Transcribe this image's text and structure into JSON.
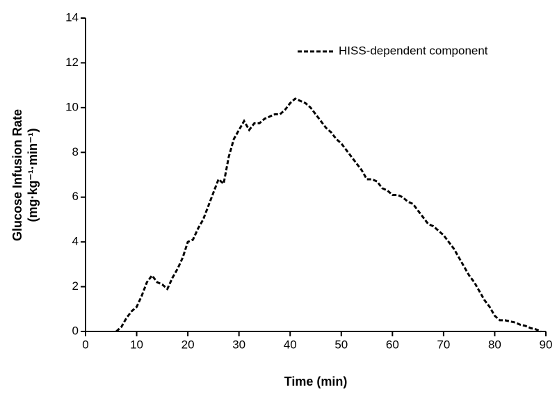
{
  "chart_data": {
    "type": "line",
    "xlabel": "Time (min)",
    "ylabel": [
      "Glucose Infusion Rate",
      "(mg·kg⁻¹·min⁻¹)"
    ],
    "x": [
      6,
      7,
      8,
      9,
      10,
      11,
      12,
      13,
      14,
      15,
      16,
      17,
      18,
      19,
      20,
      21,
      22,
      23,
      24,
      25,
      26,
      27,
      28,
      29,
      30,
      31,
      32,
      33,
      34,
      35,
      36,
      37,
      38,
      39,
      40,
      41,
      42,
      43,
      44,
      45,
      46,
      47,
      48,
      49,
      50,
      51,
      52,
      53,
      54,
      55,
      56,
      57,
      58,
      59,
      60,
      61,
      62,
      63,
      64,
      65,
      66,
      67,
      68,
      69,
      70,
      71,
      72,
      73,
      74,
      75,
      76,
      77,
      78,
      79,
      80,
      81,
      82,
      83,
      84,
      85,
      86,
      87,
      88,
      89
    ],
    "series": [
      {
        "name": "HISS-dependent component",
        "color": "#000000",
        "dashed": true,
        "values": [
          0,
          0.2,
          0.6,
          0.9,
          1.1,
          1.6,
          2.2,
          2.5,
          2.2,
          2.1,
          1.9,
          2.4,
          2.8,
          3.3,
          4.0,
          4.1,
          4.6,
          5.0,
          5.6,
          6.2,
          6.8,
          6.6,
          7.8,
          8.6,
          9.0,
          9.4,
          9.0,
          9.3,
          9.3,
          9.5,
          9.6,
          9.7,
          9.7,
          9.9,
          10.2,
          10.4,
          10.3,
          10.2,
          10.0,
          9.7,
          9.4,
          9.1,
          8.9,
          8.6,
          8.4,
          8.1,
          7.8,
          7.5,
          7.2,
          6.8,
          6.8,
          6.7,
          6.4,
          6.3,
          6.1,
          6.1,
          6.0,
          5.8,
          5.7,
          5.4,
          5.1,
          4.8,
          4.7,
          4.5,
          4.3,
          4.0,
          3.7,
          3.3,
          2.9,
          2.5,
          2.2,
          1.8,
          1.4,
          1.1,
          0.7,
          0.5,
          0.5,
          0.45,
          0.4,
          0.3,
          0.25,
          0.15,
          0.1,
          0.0
        ]
      }
    ],
    "xlim": [
      0,
      90
    ],
    "xticks": [
      0,
      10,
      20,
      30,
      40,
      50,
      60,
      70,
      80,
      90
    ],
    "ylim": [
      0,
      14
    ],
    "yticks": [
      0,
      2,
      4,
      6,
      8,
      10,
      12,
      14
    ],
    "grid": false,
    "legend": "upper right"
  }
}
